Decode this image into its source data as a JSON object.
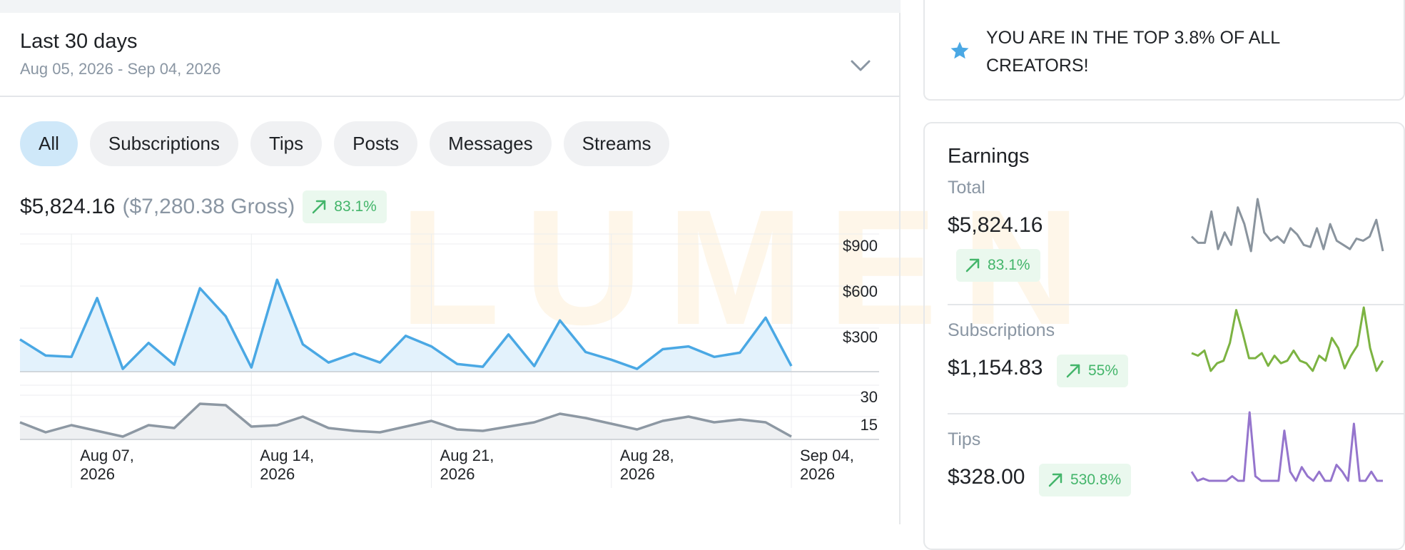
{
  "watermark": "LUMEN",
  "range": {
    "title": "Last 30 days",
    "dates": "Aug 05, 2026 - Sep 04, 2026"
  },
  "tabs": [
    {
      "label": "All",
      "active": true
    },
    {
      "label": "Subscriptions",
      "active": false
    },
    {
      "label": "Tips",
      "active": false
    },
    {
      "label": "Posts",
      "active": false
    },
    {
      "label": "Messages",
      "active": false
    },
    {
      "label": "Streams",
      "active": false
    }
  ],
  "summary": {
    "net": "$5,824.16",
    "gross": "($7,280.38 Gross)",
    "change": "83.1%"
  },
  "banner": {
    "text": "YOU ARE IN THE TOP 3.8% OF ALL CREATORS!",
    "icon": "star-icon"
  },
  "earnings": {
    "title": "Earnings",
    "rows": [
      {
        "label": "Total",
        "amount": "$5,824.16",
        "change": "83.1%",
        "color": "#8a949e",
        "spark": [
          8,
          5,
          5,
          20,
          2,
          10,
          4,
          22,
          14,
          1,
          26,
          10,
          6,
          8,
          5,
          12,
          9,
          4,
          3,
          12,
          2,
          14,
          6,
          4,
          2,
          7,
          6,
          8,
          16,
          1
        ]
      },
      {
        "label": "Subscriptions",
        "amount": "$1,154.83",
        "change": "55%",
        "color": "#7cb342",
        "spark": [
          9,
          8,
          10,
          2,
          5,
          6,
          13,
          26,
          17,
          7,
          7,
          9,
          4,
          8,
          5,
          6,
          10,
          6,
          5,
          2,
          8,
          6,
          15,
          11,
          3,
          8,
          12,
          27,
          11,
          2,
          6
        ]
      },
      {
        "label": "Tips",
        "amount": "$328.00",
        "change": "530.8%",
        "color": "#9575cd",
        "spark": [
          4,
          0,
          1,
          0,
          0,
          0,
          0,
          2,
          0,
          0,
          30,
          2,
          0,
          0,
          0,
          0,
          22,
          4,
          0,
          6,
          2,
          0,
          4,
          0,
          0,
          7,
          4,
          0,
          25,
          0,
          0,
          4,
          0,
          0
        ]
      }
    ]
  },
  "chart_data": {
    "type": "line",
    "x_tick_labels": [
      "Aug 07, 2026",
      "Aug 14, 2026",
      "Aug 21, 2026",
      "Aug 28, 2026",
      "Sep 04, 2026"
    ],
    "x": [
      "2026-08-05",
      "2026-08-06",
      "2026-08-07",
      "2026-08-08",
      "2026-08-09",
      "2026-08-10",
      "2026-08-11",
      "2026-08-12",
      "2026-08-13",
      "2026-08-14",
      "2026-08-15",
      "2026-08-16",
      "2026-08-17",
      "2026-08-18",
      "2026-08-19",
      "2026-08-20",
      "2026-08-21",
      "2026-08-22",
      "2026-08-23",
      "2026-08-24",
      "2026-08-25",
      "2026-08-26",
      "2026-08-27",
      "2026-08-28",
      "2026-08-29",
      "2026-08-30",
      "2026-08-31",
      "2026-09-01",
      "2026-09-02",
      "2026-09-03",
      "2026-09-04"
    ],
    "series": [
      {
        "color": "#4aa8e4",
        "axis": "earnings",
        "values": [
          230,
          115,
          105,
          525,
          20,
          205,
          50,
          595,
          395,
          30,
          655,
          195,
          65,
          130,
          65,
          255,
          180,
          55,
          35,
          265,
          40,
          365,
          140,
          85,
          20,
          160,
          180,
          105,
          135,
          385,
          40
        ]
      },
      {
        "color": "#8d98a3",
        "axis": "count",
        "values": [
          12,
          5,
          10,
          6,
          2,
          10,
          8,
          25,
          24,
          9,
          10,
          16,
          8,
          6,
          5,
          9,
          13,
          7,
          6,
          9,
          12,
          18,
          15,
          11,
          7,
          13,
          16,
          12,
          14,
          12,
          2
        ]
      }
    ],
    "y_earnings": {
      "ticks": [
        "$900",
        "$600",
        "$300"
      ],
      "ylim": [
        0,
        900
      ]
    },
    "y_count": {
      "ticks": [
        "30",
        "15"
      ],
      "ylim": [
        0,
        30
      ]
    },
    "grid": true
  }
}
